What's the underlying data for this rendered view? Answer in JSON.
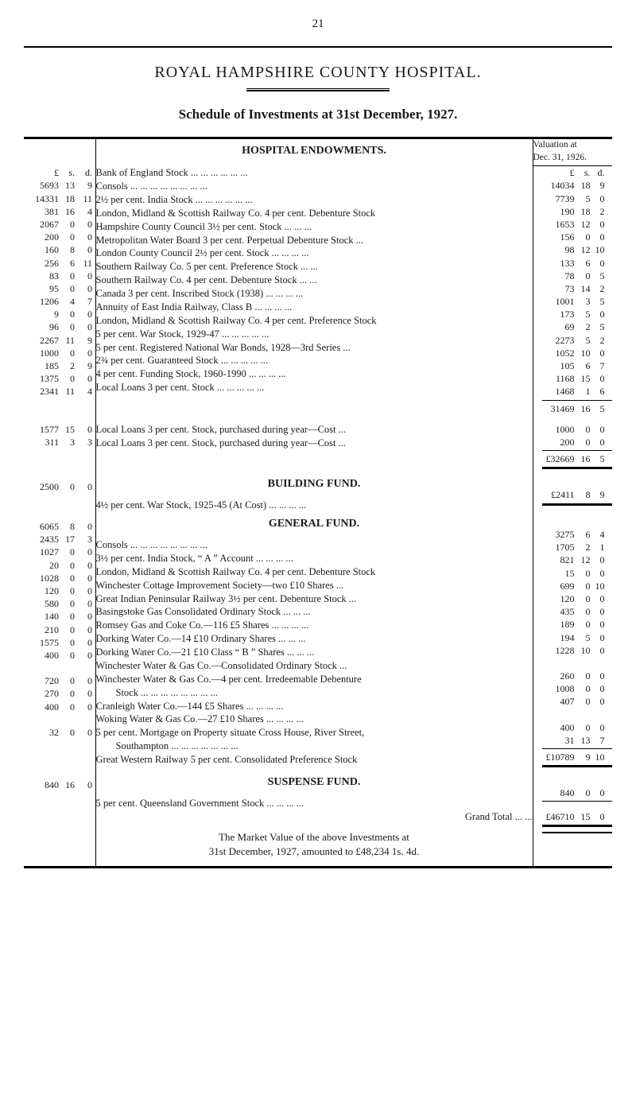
{
  "page": {
    "number": "21",
    "title": "ROYAL HAMPSHIRE COUNTY HOSPITAL.",
    "subtitle": "Schedule of Investments at 31st December, 1927."
  },
  "headers": {
    "lsd": "£  s.  d.",
    "valuation_line1": "Valuation at",
    "valuation_line2": "Dec. 31, 1926."
  },
  "sections": {
    "endowments": {
      "heading": "HOSPITAL ENDOWMENTS.",
      "rows": [
        {
          "L": "5693",
          "s": "13",
          "d": "9",
          "desc": "Bank of England Stock      ...      ...      ...      ...      ...      ...",
          "vL": "14034",
          "vs": "18",
          "vd": "9"
        },
        {
          "L": "14331",
          "s": "18",
          "d": "11",
          "desc": "Consols      ...      ...      ...      ...      ...      ...      ...      ...",
          "vL": "7739",
          "vs": "5",
          "vd": "0"
        },
        {
          "L": "381",
          "s": "16",
          "d": "4",
          "desc": "2½ per cent. India Stock      ...      ...      ...      ...      ...      ...",
          "vL": "190",
          "vs": "18",
          "vd": "2"
        },
        {
          "L": "2067",
          "s": "0",
          "d": "0",
          "desc": "London, Midland & Scottish Railway Co. 4 per cent. Debenture Stock",
          "vL": "1653",
          "vs": "12",
          "vd": "0"
        },
        {
          "L": "200",
          "s": "0",
          "d": "0",
          "desc": "Hampshire County Council 3½ per cent. Stock      ...      ...      ...",
          "vL": "156",
          "vs": "0",
          "vd": "0"
        },
        {
          "L": "160",
          "s": "8",
          "d": "0",
          "desc": "Metropolitan Water Board 3 per cent. Perpetual Debenture Stock ...",
          "vL": "98",
          "vs": "12",
          "vd": "10"
        },
        {
          "L": "256",
          "s": "6",
          "d": "11",
          "desc": "London County Council 2½ per cent. Stock ...      ...      ...      ...",
          "vL": "133",
          "vs": "6",
          "vd": "0"
        },
        {
          "L": "83",
          "s": "0",
          "d": "0",
          "desc": "Southern Railway Co. 5 per cent. Preference Stock      ...      ...",
          "vL": "78",
          "vs": "0",
          "vd": "5"
        },
        {
          "L": "95",
          "s": "0",
          "d": "0",
          "desc": "Southern Railway Co. 4 per cent. Debenture Stock      ...      ...",
          "vL": "73",
          "vs": "14",
          "vd": "2"
        },
        {
          "L": "1206",
          "s": "4",
          "d": "7",
          "desc": "Canada 3 per cent. Inscribed Stock (1938) ...      ...      ...      ...",
          "vL": "1001",
          "vs": "3",
          "vd": "5"
        },
        {
          "L": "9",
          "s": "0",
          "d": "0",
          "desc": "Annuity of East India Railway, Class B      ...      ...      ...      ...",
          "vL": "173",
          "vs": "5",
          "vd": "0"
        },
        {
          "L": "96",
          "s": "0",
          "d": "0",
          "desc": "London, Midland & Scottish Railway Co. 4 per cent. Preference Stock",
          "vL": "69",
          "vs": "2",
          "vd": "5"
        },
        {
          "L": "2267",
          "s": "11",
          "d": "9",
          "desc": "5 per cent. War Stock, 1929-47      ...      ...      ...      ...      ...",
          "vL": "2273",
          "vs": "5",
          "vd": "2"
        },
        {
          "L": "1000",
          "s": "0",
          "d": "0",
          "desc": "5 per cent. Registered National War Bonds, 1928—3rd Series      ...",
          "vL": "1052",
          "vs": "10",
          "vd": "0"
        },
        {
          "L": "185",
          "s": "2",
          "d": "9",
          "desc": "2¾ per cent. Guaranteed Stock      ...      ...      ...      ...      ...",
          "vL": "105",
          "vs": "6",
          "vd": "7"
        },
        {
          "L": "1375",
          "s": "0",
          "d": "0",
          "desc": "4 per cent. Funding Stock, 1960-1990      ...      ...      ...      ...",
          "vL": "1168",
          "vs": "15",
          "vd": "0"
        },
        {
          "L": "2341",
          "s": "11",
          "d": "4",
          "desc": "Local Loans 3 per cent. Stock      ...      ...      ...      ...      ...",
          "vL": "1468",
          "vs": "1",
          "vd": "6"
        }
      ],
      "subtotal1": {
        "vL": "31469",
        "vs": "16",
        "vd": "5"
      },
      "tail": [
        {
          "L": "1577",
          "s": "15",
          "d": "0",
          "desc": "Local Loans 3 per cent. Stock, purchased during year—Cost      ...",
          "vL": "1000",
          "vs": "0",
          "vd": "0"
        },
        {
          "L": "311",
          "s": "3",
          "d": "3",
          "desc": "Local Loans 3 per cent. Stock, purchased during year—Cost      ...",
          "vL": "200",
          "vs": "0",
          "vd": "0"
        }
      ],
      "total": {
        "vL": "£32669",
        "vs": "16",
        "vd": "5"
      }
    },
    "building": {
      "heading": "BUILDING FUND.",
      "row": {
        "L": "2500",
        "s": "0",
        "d": "0",
        "desc": "4½ per cent. War Stock, 1925-45 (At Cost)   ...      ...      ...      ...",
        "vL": "£2411",
        "vs": "8",
        "vd": "9"
      }
    },
    "general": {
      "heading": "GENERAL FUND.",
      "rows": [
        {
          "L": "6065",
          "s": "8",
          "d": "0",
          "desc": "Consols      ...      ...      ...      ...      ...      ...      ...      ...",
          "vL": "3275",
          "vs": "6",
          "vd": "4"
        },
        {
          "L": "2435",
          "s": "17",
          "d": "3",
          "desc": "3½ per cent. India Stock, “ A ” Account      ...      ...      ...      ...",
          "vL": "1705",
          "vs": "2",
          "vd": "1"
        },
        {
          "L": "1027",
          "s": "0",
          "d": "0",
          "desc": "London, Midland & Scottish Railway Co. 4 per cent. Debenture Stock",
          "vL": "821",
          "vs": "12",
          "vd": "0"
        },
        {
          "L": "20",
          "s": "0",
          "d": "0",
          "desc": "Winchester Cottage Improvement Society—two £10 Shares      ...",
          "vL": "15",
          "vs": "0",
          "vd": "0"
        },
        {
          "L": "1028",
          "s": "0",
          "d": "0",
          "desc": "Great Indian Peninsular Railway 3½ per cent. Debenture Stock      ...",
          "vL": "699",
          "vs": "0",
          "vd": "10"
        },
        {
          "L": "120",
          "s": "0",
          "d": "0",
          "desc": "Basingstoke Gas Consolidated Ordinary Stock      ...      ...      ...",
          "vL": "120",
          "vs": "0",
          "vd": "0"
        },
        {
          "L": "580",
          "s": "0",
          "d": "0",
          "desc": "Romsey Gas and Coke Co.—116 £5 Shares ...      ...      ...      ...",
          "vL": "435",
          "vs": "0",
          "vd": "0"
        },
        {
          "L": "140",
          "s": "0",
          "d": "0",
          "desc": "Dorking Water Co.—14 £10 Ordinary Shares      ...      ...      ...",
          "vL": "189",
          "vs": "0",
          "vd": "0"
        },
        {
          "L": "210",
          "s": "0",
          "d": "0",
          "desc": "Dorking Water Co.—21 £10 Class “ B ” Shares      ...      ...      ...",
          "vL": "194",
          "vs": "5",
          "vd": "0"
        },
        {
          "L": "1575",
          "s": "0",
          "d": "0",
          "desc": "Winchester Water & Gas Co.—Consolidated Ordinary Stock      ...",
          "vL": "1228",
          "vs": "10",
          "vd": "0"
        },
        {
          "L": "400",
          "s": "0",
          "d": "0",
          "desc": "Winchester Water & Gas Co.—4 per cent. Irredeemable Debenture",
          "vL": "",
          "vs": "",
          "vd": ""
        },
        {
          "L": "",
          "s": "",
          "d": "",
          "desc": "  Stock   ...      ...      ...      ...      ...      ...      ...      ...",
          "vL": "260",
          "vs": "0",
          "vd": "0"
        },
        {
          "L": "720",
          "s": "0",
          "d": "0",
          "desc": "Cranleigh Water Co.—144 £5 Shares      ...      ...      ...      ...",
          "vL": "1008",
          "vs": "0",
          "vd": "0"
        },
        {
          "L": "270",
          "s": "0",
          "d": "0",
          "desc": "Woking Water & Gas Co.—27 £10 Shares   ...      ...      ...      ...",
          "vL": "407",
          "vs": "0",
          "vd": "0"
        },
        {
          "L": "400",
          "s": "0",
          "d": "0",
          "desc": "5 per cent. Mortgage on Property situate Cross House, River Street,",
          "vL": "",
          "vs": "",
          "vd": ""
        },
        {
          "L": "",
          "s": "",
          "d": "",
          "desc": "  Southampton   ...      ...      ...      ...      ...      ...      ...",
          "vL": "400",
          "vs": "0",
          "vd": "0"
        },
        {
          "L": "32",
          "s": "0",
          "d": "0",
          "desc": "Great Western Railway 5 per cent. Consolidated Preference Stock",
          "vL": "31",
          "vs": "13",
          "vd": "7"
        }
      ],
      "total": {
        "vL": "£10789",
        "vs": "9",
        "vd": "10"
      }
    },
    "suspense": {
      "heading": "SUSPENSE FUND.",
      "row": {
        "L": "840",
        "s": "16",
        "d": "0",
        "desc": "5 per cent. Queensland Government Stock ...      ...      ...      ...",
        "vL": "840",
        "vs": "0",
        "vd": "0"
      }
    },
    "grand": {
      "label": "Grand Total      ...      ...",
      "vL": "£46710",
      "vs": "15",
      "vd": "0"
    },
    "footnote": {
      "line1": "The Market Value of the above Investments at",
      "line2": "31st December, 1927, amounted to £48,234 1s. 4d."
    }
  }
}
